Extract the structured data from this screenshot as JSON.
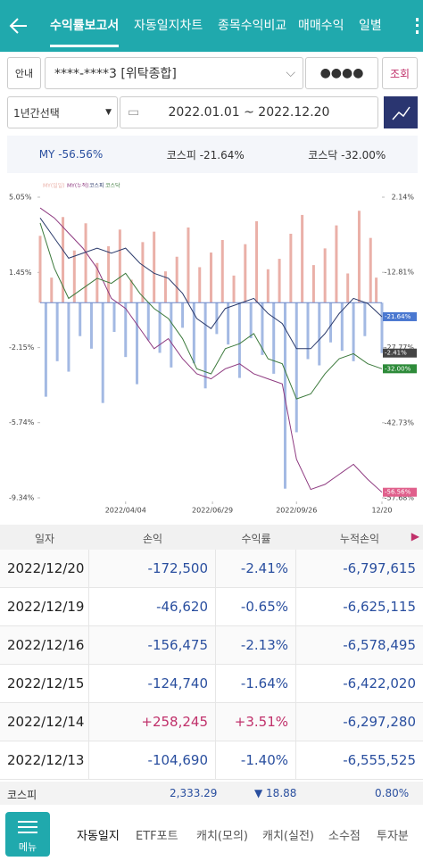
{
  "header": {
    "tabs": [
      "수익률보고서",
      "자동일지차트",
      "종목수익비교",
      "매매수익",
      "일별"
    ],
    "active": 0
  },
  "query": {
    "guide": "안내",
    "account": "****-****3 [위탁종합]",
    "password": "●●●●",
    "search": "조회",
    "period": "1년간선택",
    "dates": "2022.01.01 ~ 2022.12.20"
  },
  "summary": [
    {
      "name": "MY",
      "value": "-56.56%"
    },
    {
      "name": "코스피",
      "value": "-21.64%"
    },
    {
      "name": "코스닥",
      "value": "-32.00%"
    }
  ],
  "chart": {
    "type": "bar-line",
    "legend": [
      "MY(일일)",
      "MY(누적)",
      "코스피",
      "코스닥"
    ],
    "xlim": [
      0,
      240
    ],
    "xticks": [
      {
        "value": 60,
        "label": "2022/04/04"
      },
      {
        "value": 121,
        "label": "2022/06/29"
      },
      {
        "value": 180,
        "label": "2022/09/26"
      },
      {
        "value": 240,
        "label": "12/20"
      }
    ],
    "ylim": [
      -9.34,
      5.05
    ],
    "yticks": [
      {
        "value": 5.05,
        "label": "5.05%"
      },
      {
        "value": 1.45,
        "label": "1.45%"
      },
      {
        "value": -2.15,
        "label": "-2.15%"
      },
      {
        "value": -5.74,
        "label": "-5.74%"
      },
      {
        "value": -9.34,
        "label": "-9.34%"
      }
    ],
    "y2lim": [
      -57.68,
      2.14
    ],
    "y2ticks": [
      {
        "value": 2.14,
        "label": "2.14%"
      },
      {
        "value": -12.81,
        "label": "-12.81%"
      },
      {
        "value": -27.77,
        "label": "-27.77%"
      },
      {
        "value": -42.73,
        "label": "-42.73%"
      },
      {
        "value": -57.68,
        "label": "-57.68%"
      }
    ],
    "bars": {
      "name": "MY(일일)",
      "pos_color": "#eab0a8",
      "neg_color": "#a3b9e3",
      "x": [
        0,
        4,
        8,
        12,
        16,
        20,
        24,
        28,
        32,
        36,
        40,
        44,
        48,
        52,
        56,
        60,
        64,
        68,
        72,
        76,
        80,
        84,
        88,
        92,
        96,
        100,
        104,
        108,
        112,
        116,
        120,
        124,
        128,
        132,
        136,
        140,
        144,
        148,
        152,
        156,
        160,
        164,
        168,
        172,
        176,
        180,
        184,
        188,
        192,
        196,
        200,
        204,
        208,
        212,
        216,
        220,
        224,
        228,
        232,
        236,
        240
      ],
      "values": [
        3.2,
        -4.5,
        1.2,
        -2.8,
        4.1,
        -3.3,
        2.5,
        -1.6,
        3.8,
        -2.2,
        1.9,
        -4.8,
        2.7,
        -1.4,
        3.5,
        -2.6,
        1.1,
        -3.9,
        2.9,
        -1.8,
        3.4,
        -2.4,
        1.5,
        -3.1,
        2.2,
        -1.2,
        3.6,
        -2.9,
        1.7,
        -4.1,
        2.4,
        -1.5,
        3.0,
        -2.0,
        1.3,
        -3.6,
        2.8,
        -1.7,
        3.9,
        -2.5,
        1.6,
        -3.4,
        2.1,
        -8.9,
        3.3,
        -6.2,
        4.2,
        -2.7,
        1.8,
        -3.0,
        2.6,
        -1.9,
        3.7,
        -2.3,
        1.4,
        -2.8,
        4.4,
        -1.6,
        3.1,
        1.2,
        -2.41
      ],
      "end_label": "-2.41%",
      "end_color": "#444444"
    },
    "x": [
      0,
      10,
      20,
      30,
      40,
      50,
      60,
      70,
      80,
      90,
      100,
      110,
      120,
      130,
      140,
      150,
      160,
      170,
      180,
      190,
      200,
      210,
      220,
      230,
      240
    ],
    "series": [
      {
        "name": "MY(누적)",
        "color": "#8e3a80",
        "axis": "y2",
        "end_label": "-56.56%",
        "end_color": "#e0608c",
        "values": [
          0,
          -2,
          -5,
          -8,
          -12,
          -18,
          -20,
          -24,
          -28,
          -26,
          -30,
          -33,
          -34,
          -32,
          -31,
          -33,
          -34,
          -35,
          -50,
          -56,
          -55,
          -53,
          -51,
          -54,
          -56.56
        ]
      },
      {
        "name": "코스피",
        "color": "#2b3a6b",
        "axis": "y2",
        "end_label": "-21.64%",
        "end_color": "#4a78d0",
        "values": [
          -2,
          -6,
          -10,
          -9,
          -8,
          -9,
          -8,
          -11,
          -13,
          -14,
          -17,
          -22,
          -24,
          -20,
          -19,
          -18,
          -21,
          -23,
          -28,
          -28,
          -25,
          -21,
          -18,
          -19,
          -21.64
        ]
      },
      {
        "name": "코스닥",
        "color": "#3c7a3c",
        "axis": "y2",
        "end_label": "-32.00%",
        "end_color": "#2e8b3a",
        "values": [
          -3,
          -12,
          -18,
          -16,
          -14,
          -15,
          -13,
          -17,
          -20,
          -22,
          -26,
          -32,
          -33,
          -28,
          -27,
          -25,
          -30,
          -31,
          -38,
          -37,
          -33,
          -30,
          -29,
          -31,
          -32
        ]
      }
    ]
  },
  "table": {
    "columns": [
      "일자",
      "손익",
      "수익률",
      "누적손익"
    ],
    "rows": [
      [
        "2022/12/20",
        "-172,500",
        "-2.41%",
        "-6,797,615"
      ],
      [
        "2022/12/19",
        "-46,620",
        "-0.65%",
        "-6,625,115"
      ],
      [
        "2022/12/16",
        "-156,475",
        "-2.13%",
        "-6,578,495"
      ],
      [
        "2022/12/15",
        "-124,740",
        "-1.64%",
        "-6,422,020"
      ],
      [
        "2022/12/14",
        "+258,245",
        "+3.51%",
        "-6,297,280"
      ],
      [
        "2022/12/13",
        "-104,690",
        "-1.40%",
        "-6,555,525"
      ]
    ]
  },
  "ticker": {
    "name": "코스피",
    "price": "2,333.29",
    "change": "▼ 18.88",
    "rate": "0.80%"
  },
  "nav": {
    "menu": "메뉴",
    "items": [
      "자동일지",
      "ETF포트",
      "캐치(모의)",
      "캐치(실전)",
      "소수점",
      "투자분"
    ]
  }
}
